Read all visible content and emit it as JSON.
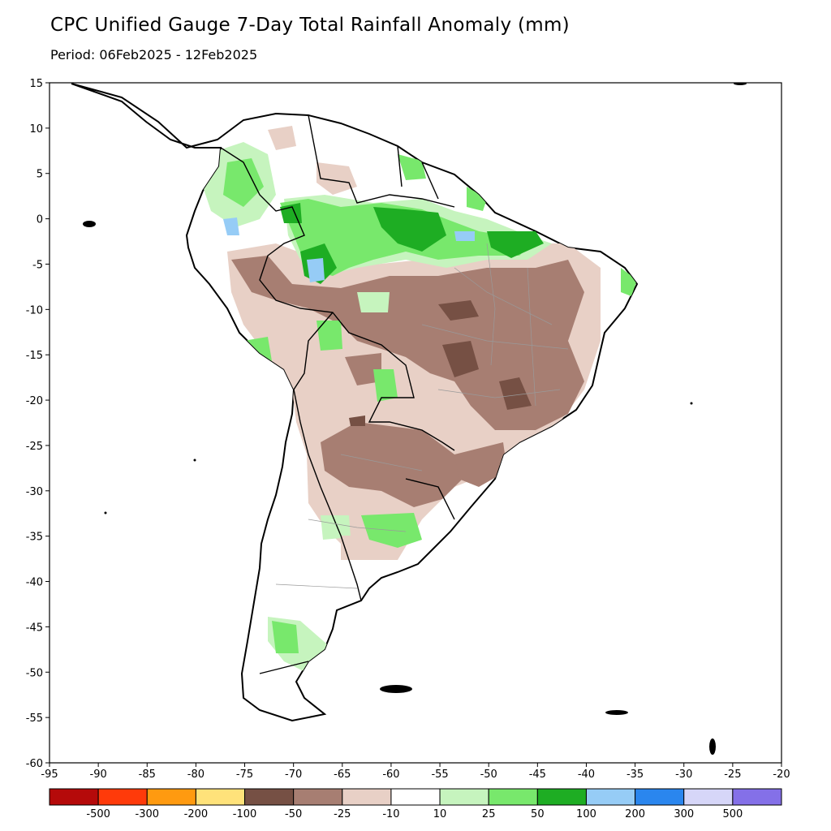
{
  "title": "CPC Unified Gauge 7-Day Total Rainfall Anomaly (mm)",
  "period": "Period: 06Feb2025 - 12Feb2025",
  "lon_ticks": [
    "-95",
    "-90",
    "-85",
    "-80",
    "-75",
    "-70",
    "-65",
    "-60",
    "-55",
    "-50",
    "-45",
    "-40",
    "-35",
    "-30",
    "-25",
    "-20"
  ],
  "lat_ticks": [
    "15",
    "10",
    "5",
    "0",
    "-5",
    "-10",
    "-15",
    "-20",
    "-25",
    "-30",
    "-35",
    "-40",
    "-45",
    "-50",
    "-55",
    "-60"
  ],
  "axes": {
    "lon_range": [
      -95,
      -20
    ],
    "lat_range": [
      -60,
      15
    ]
  },
  "legend": {
    "colors": [
      "#b50a0a",
      "#ff3a0a",
      "#ff9a10",
      "#ffe27a",
      "#765044",
      "#a77e72",
      "#e8d0c6",
      "#ffffff",
      "#c6f4be",
      "#78e86c",
      "#1ead23",
      "#96ccf6",
      "#2a86ee",
      "#d6d6f8",
      "#8470e8"
    ],
    "labels": [
      "-500",
      "-300",
      "-200",
      "-100",
      "-50",
      "-25",
      "-10",
      "10",
      "25",
      "50",
      "100",
      "200",
      "300",
      "500"
    ]
  },
  "colors": {
    "land_dry_light": "#e8d0c6",
    "land_dry_mid": "#a77e72",
    "land_dry_dark": "#765044",
    "wet_light": "#c6f4be",
    "wet_mid": "#78e86c",
    "wet_dark": "#1ead23",
    "wet_blue": "#96ccf6"
  }
}
